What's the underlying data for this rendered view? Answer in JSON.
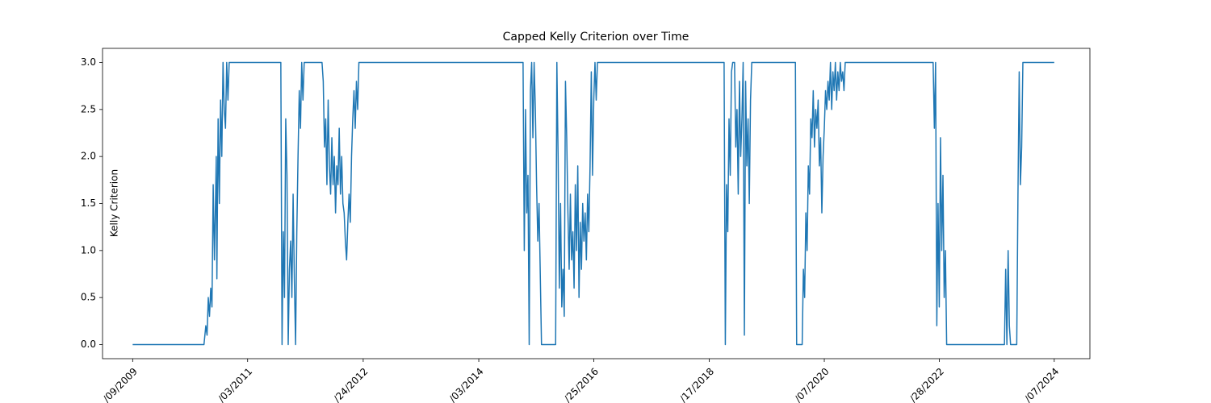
{
  "chart_data": {
    "type": "line",
    "title": "Capped Kelly Criterion over Time",
    "ylabel": "Kelly Criterion",
    "color": "#1f77b4",
    "grid": false,
    "xlim": [
      2008.7,
      2024.76
    ],
    "xticks": [
      {
        "value": 2009.19,
        "label": "/09/2009"
      },
      {
        "value": 2011.06,
        "label": "/03/2011"
      },
      {
        "value": 2012.94,
        "label": "/24/2012"
      },
      {
        "value": 2014.82,
        "label": "/03/2014"
      },
      {
        "value": 2016.69,
        "label": "/25/2016"
      },
      {
        "value": 2018.57,
        "label": "/17/2018"
      },
      {
        "value": 2020.44,
        "label": "/07/2020"
      },
      {
        "value": 2022.31,
        "label": "/28/2022"
      },
      {
        "value": 2024.18,
        "label": "/07/2024"
      }
    ],
    "ylim": [
      -0.15,
      3.15
    ],
    "yticks": [
      {
        "value": 0,
        "label": "0.0"
      },
      0.5,
      {
        "value": 1,
        "label": "1.0"
      },
      1.5,
      {
        "value": 2,
        "label": "2.0"
      },
      2.5,
      {
        "value": 3,
        "label": "3.0"
      }
    ],
    "x": [
      2009.19,
      2010.35,
      2010.38,
      2010.4,
      2010.42,
      2010.44,
      2010.46,
      2010.48,
      2010.5,
      2010.52,
      2010.54,
      2010.55,
      2010.56,
      2010.58,
      2010.6,
      2010.62,
      2010.64,
      2010.66,
      2010.68,
      2010.7,
      2010.72,
      2010.74,
      2010.76,
      2010.78,
      2011.6,
      2011.62,
      2011.64,
      2011.66,
      2011.68,
      2011.7,
      2011.72,
      2011.74,
      2011.76,
      2011.78,
      2011.8,
      2011.82,
      2011.84,
      2011.86,
      2011.88,
      2011.9,
      2011.92,
      2011.94,
      2011.96,
      2011.98,
      2012.27,
      2012.29,
      2012.31,
      2012.33,
      2012.35,
      2012.37,
      2012.39,
      2012.41,
      2012.43,
      2012.45,
      2012.47,
      2012.49,
      2012.51,
      2012.53,
      2012.55,
      2012.57,
      2012.59,
      2012.61,
      2012.63,
      2012.65,
      2012.67,
      2012.69,
      2012.71,
      2012.73,
      2012.75,
      2012.77,
      2012.79,
      2012.81,
      2012.83,
      2012.85,
      2012.87,
      2015.54,
      2015.56,
      2015.58,
      2015.6,
      2015.62,
      2015.64,
      2015.66,
      2015.68,
      2015.7,
      2015.72,
      2015.74,
      2015.76,
      2015.78,
      2015.8,
      2015.84,
      2016.07,
      2016.09,
      2016.11,
      2016.13,
      2016.15,
      2016.17,
      2016.19,
      2016.21,
      2016.23,
      2016.25,
      2016.27,
      2016.29,
      2016.31,
      2016.33,
      2016.35,
      2016.37,
      2016.39,
      2016.41,
      2016.43,
      2016.45,
      2016.47,
      2016.49,
      2016.51,
      2016.53,
      2016.55,
      2016.57,
      2016.59,
      2016.61,
      2016.63,
      2016.65,
      2016.67,
      2016.69,
      2016.71,
      2016.73,
      2016.75,
      2018.81,
      2018.83,
      2018.85,
      2018.87,
      2018.89,
      2018.91,
      2018.93,
      2018.95,
      2018.98,
      2019.0,
      2019.02,
      2019.04,
      2019.06,
      2019.08,
      2019.1,
      2019.12,
      2019.14,
      2019.16,
      2019.18,
      2019.2,
      2019.22,
      2019.24,
      2019.26,
      2019.97,
      2019.99,
      2020.08,
      2020.1,
      2020.12,
      2020.14,
      2020.16,
      2020.18,
      2020.2,
      2020.22,
      2020.24,
      2020.26,
      2020.28,
      2020.3,
      2020.32,
      2020.34,
      2020.36,
      2020.38,
      2020.4,
      2020.42,
      2020.44,
      2020.46,
      2020.48,
      2020.5,
      2020.52,
      2020.54,
      2020.56,
      2020.58,
      2020.6,
      2020.62,
      2020.64,
      2020.66,
      2020.68,
      2020.7,
      2020.72,
      2020.74,
      2020.76,
      2020.78,
      2022.21,
      2022.23,
      2022.25,
      2022.27,
      2022.29,
      2022.31,
      2022.33,
      2022.35,
      2022.37,
      2022.39,
      2022.41,
      2022.43,
      2022.5,
      2023.37,
      2023.39,
      2023.41,
      2023.43,
      2023.45,
      2023.47,
      2023.57,
      2023.59,
      2023.61,
      2023.63,
      2023.65,
      2023.67,
      2024.18
    ],
    "values": [
      0,
      0,
      0.2,
      0.1,
      0.5,
      0.3,
      0.6,
      0.4,
      1.7,
      0.9,
      1.6,
      2.0,
      0.7,
      2.4,
      1.5,
      2.6,
      2.0,
      3.0,
      2.5,
      2.3,
      3.0,
      2.6,
      3.0,
      3.0,
      3.0,
      0,
      1.2,
      0.5,
      2.4,
      1.8,
      0,
      0.8,
      1.1,
      0.5,
      1.6,
      0.7,
      0,
      1.2,
      2.0,
      2.7,
      2.3,
      3.0,
      2.6,
      3.0,
      3.0,
      2.8,
      2.1,
      2.4,
      1.7,
      2.6,
      1.9,
      1.6,
      2.2,
      1.7,
      2.0,
      1.4,
      1.9,
      1.7,
      2.3,
      1.6,
      2.0,
      1.5,
      1.4,
      1.1,
      0.9,
      1.3,
      1.6,
      1.3,
      2.0,
      2.4,
      2.7,
      2.3,
      2.8,
      2.5,
      3.0,
      3.0,
      1.0,
      2.5,
      1.4,
      1.8,
      0,
      2.7,
      3.0,
      2.2,
      3.0,
      2.5,
      1.7,
      1.1,
      1.5,
      0,
      0,
      3.0,
      2.0,
      0.6,
      1.5,
      0.4,
      0.8,
      0.3,
      2.8,
      2.2,
      1.4,
      0.8,
      1.6,
      0.9,
      1.2,
      0.6,
      1.7,
      1.0,
      1.9,
      0.5,
      1.3,
      0.8,
      1.5,
      1.1,
      1.4,
      0.9,
      1.6,
      1.2,
      1.9,
      2.9,
      1.8,
      2.6,
      3.0,
      2.6,
      3.0,
      3.0,
      0,
      1.7,
      1.2,
      2.4,
      1.8,
      2.9,
      3.0,
      3.0,
      2.1,
      2.5,
      1.6,
      2.8,
      2.0,
      2.4,
      3.0,
      0.1,
      2.8,
      1.9,
      2.4,
      1.5,
      2.6,
      3.0,
      3.0,
      0,
      0,
      0.8,
      0.5,
      1.4,
      1.0,
      1.9,
      1.6,
      2.4,
      2.2,
      2.7,
      2.1,
      2.5,
      2.3,
      2.6,
      1.9,
      2.2,
      1.4,
      2.0,
      2.3,
      2.7,
      2.5,
      2.8,
      2.6,
      3.0,
      2.5,
      2.9,
      2.7,
      3.0,
      2.6,
      2.9,
      2.7,
      3.0,
      2.8,
      2.9,
      2.7,
      3.0,
      3.0,
      2.3,
      3.0,
      0.2,
      1.5,
      0.4,
      2.2,
      1.0,
      1.8,
      0.5,
      1.0,
      0,
      0,
      0,
      0.8,
      0,
      1.0,
      0.2,
      0,
      0,
      1.6,
      2.9,
      1.7,
      2.1,
      3.0,
      3.0
    ]
  }
}
